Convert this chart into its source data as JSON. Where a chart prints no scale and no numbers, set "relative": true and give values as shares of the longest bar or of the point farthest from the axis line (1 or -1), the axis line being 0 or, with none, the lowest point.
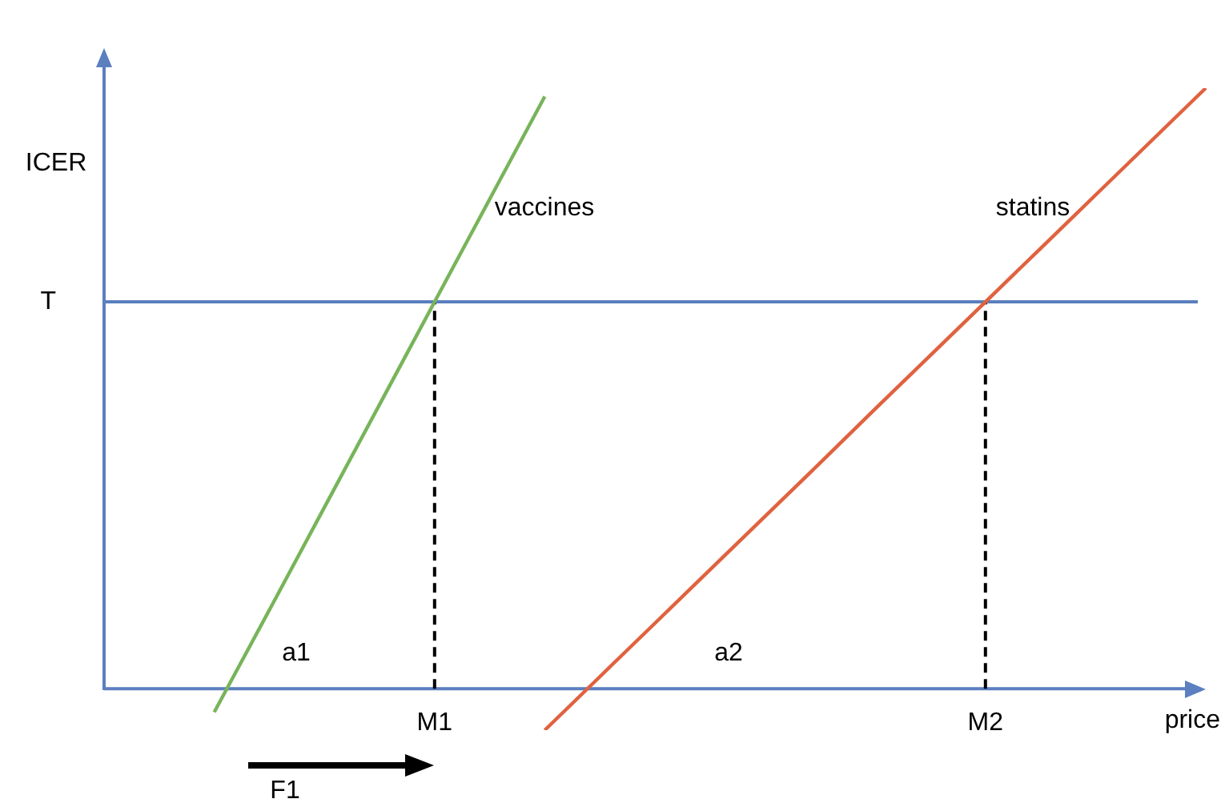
{
  "chart_data": {
    "type": "line",
    "relative": true,
    "xlabel": "price",
    "ylabel": "ICER",
    "categories": [
      null,
      null,
      null,
      null,
      null,
      null,
      "M1",
      null,
      null,
      null,
      null,
      null,
      null,
      null,
      null,
      null,
      "M2",
      null,
      null,
      null,
      null
    ],
    "series": [
      {
        "name": "vaccines",
        "color": "#78b45a",
        "values": [
          null,
          null,
          -0.039,
          0.131,
          0.302,
          0.473,
          0.644,
          0.815,
          0.986,
          null,
          null,
          null,
          null,
          null,
          null,
          null,
          null,
          null,
          null,
          null,
          null
        ]
      },
      {
        "name": "statins",
        "color": "#e0623f",
        "values": [
          null,
          null,
          null,
          null,
          null,
          null,
          null,
          null,
          -0.069,
          0.02,
          0.109,
          0.198,
          0.287,
          0.376,
          0.466,
          0.555,
          0.644,
          0.733,
          0.822,
          0.911,
          1.0
        ]
      }
    ],
    "ref_lines": [
      {
        "axis": "y",
        "value": 0.644,
        "label": "T",
        "color": "#5b7fbf",
        "line_style": "solid"
      },
      {
        "axis": "y",
        "value": 0,
        "color": "#5b7fbf",
        "line_style": "solid"
      },
      {
        "axis": "x",
        "value": "M1",
        "color": "#000000",
        "line_style": "dashed"
      },
      {
        "axis": "x",
        "value": "M2",
        "color": "#000000",
        "line_style": "dashed"
      }
    ],
    "annotations": [
      "a1",
      "a2",
      "F1"
    ],
    "marker": "none",
    "line_style": "solid",
    "legend": false
  }
}
